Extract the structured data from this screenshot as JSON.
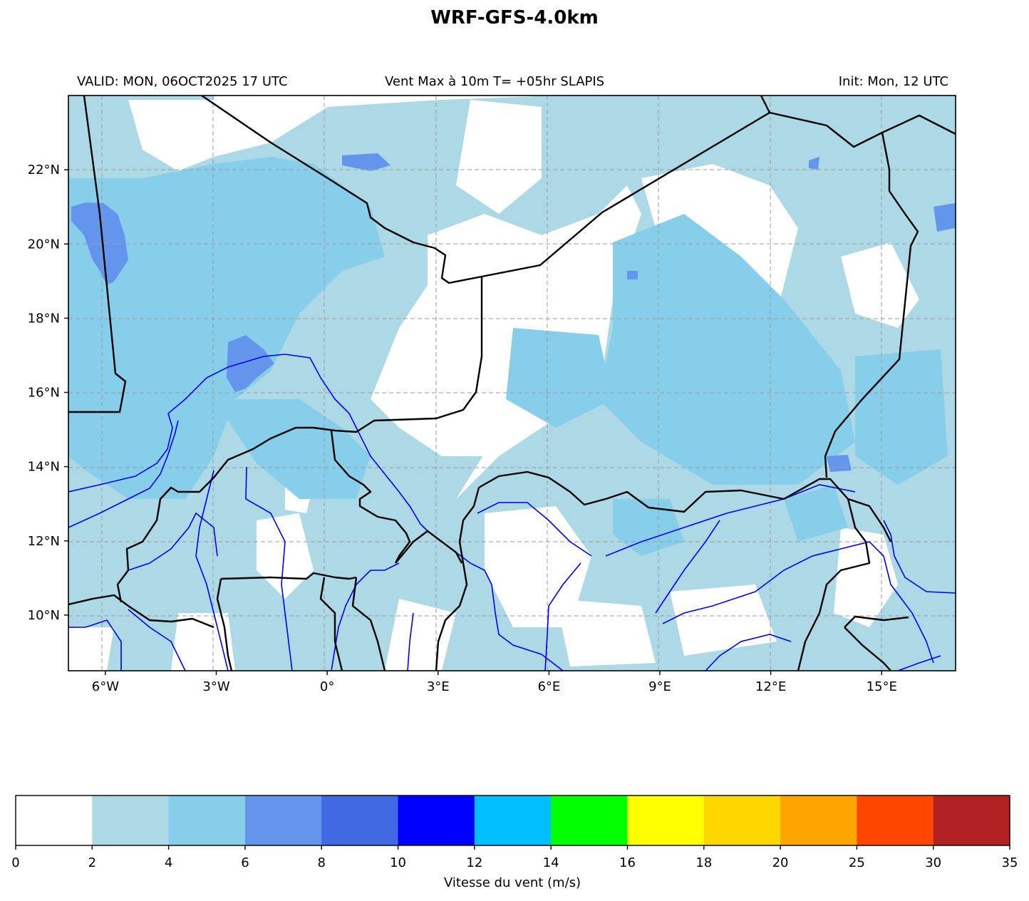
{
  "header": {
    "title": "WRF-GFS-4.0km",
    "valid": "VALID: MON, 06OCT2025 17 UTC",
    "field": "Vent Max à 10m T= +05hr SLAPIS",
    "init": "Init: Mon, 12 UTC"
  },
  "map": {
    "lon_range": [
      -7,
      17
    ],
    "lat_range": [
      8.5,
      24
    ],
    "lon_ticks": [
      {
        "value": -6,
        "label": "6°W"
      },
      {
        "value": -3,
        "label": "3°W"
      },
      {
        "value": 0,
        "label": "0°"
      },
      {
        "value": 3,
        "label": "3°E"
      },
      {
        "value": 6,
        "label": "6°E"
      },
      {
        "value": 9,
        "label": "9°E"
      },
      {
        "value": 12,
        "label": "12°E"
      },
      {
        "value": 15,
        "label": "15°E"
      }
    ],
    "lat_ticks": [
      {
        "value": 22,
        "label": "22°N"
      },
      {
        "value": 20,
        "label": "20°N"
      },
      {
        "value": 18,
        "label": "18°N"
      },
      {
        "value": 16,
        "label": "16°N"
      },
      {
        "value": 14,
        "label": "14°N"
      },
      {
        "value": 12,
        "label": "12°N"
      },
      {
        "value": 10,
        "label": "10°N"
      }
    ],
    "gridlines": true,
    "border_color": "#000000",
    "river_color": "#0000ee"
  },
  "colorbar": {
    "label": "Vitesse du vent (m/s)",
    "bounds": [
      "0",
      "2",
      "4",
      "6",
      "8",
      "10",
      "12",
      "14",
      "16",
      "18",
      "20",
      "25",
      "30",
      "35"
    ],
    "colors": [
      "#ffffff",
      "#add8e6",
      "#87ceeb",
      "#6495ed",
      "#4169e1",
      "#0000ff",
      "#00bfff",
      "#00ff00",
      "#ffff00",
      "#ffd700",
      "#ffa500",
      "#ff4500",
      "#b22222"
    ]
  }
}
